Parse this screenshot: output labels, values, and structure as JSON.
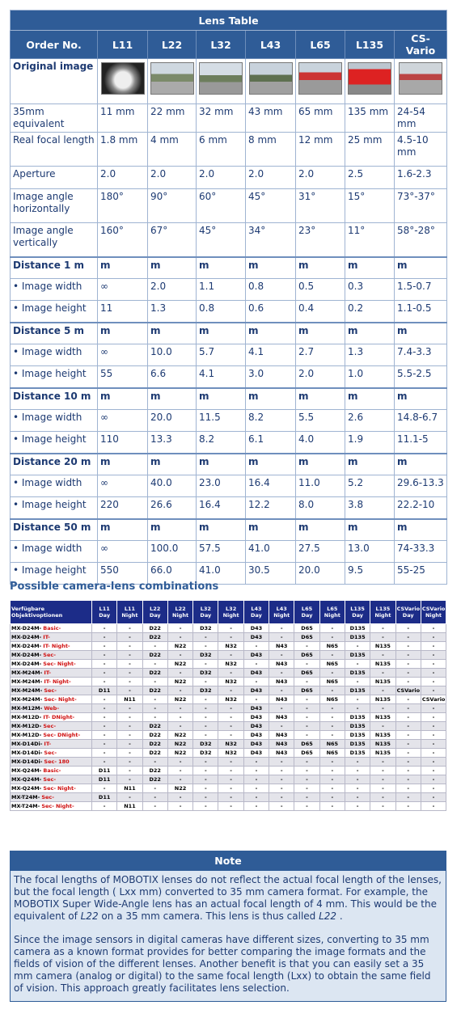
{
  "lens_table": {
    "title": "Lens Table",
    "header": [
      "Order No.",
      "L11",
      "L22",
      "L32",
      "L43",
      "L65",
      "L135",
      "CS-Vario"
    ],
    "image_row_label": "Original image",
    "specs": [
      [
        "35mm equivalent",
        "11 mm",
        "22 mm",
        "32 mm",
        "43 mm",
        "65 mm",
        "135 mm",
        "24-54 mm"
      ],
      [
        "Real focal length",
        "1.8 mm",
        "4 mm",
        "6 mm",
        "8 mm",
        "12 mm",
        "25 mm",
        "4.5-10 mm"
      ],
      [
        "Aperture",
        "2.0",
        "2.0",
        "2.0",
        "2.0",
        "2.0",
        "2.5",
        "1.6-2.3"
      ],
      [
        "Image angle horizontally",
        "180°",
        "90°",
        "60°",
        "45°",
        "31°",
        "15°",
        "73°-37°"
      ],
      [
        "Image angle vertically",
        "160°",
        "67°",
        "45°",
        "34°",
        "23°",
        "11°",
        "58°-28°"
      ]
    ],
    "distances": [
      {
        "label": "Distance 1 m",
        "units": [
          "m",
          "m",
          "m",
          "m",
          "m",
          "m",
          "m"
        ],
        "rows": [
          [
            "• Image width",
            "∞",
            "2.0",
            "1.1",
            "0.8",
            "0.5",
            "0.3",
            "1.5-0.7"
          ],
          [
            "• Image height",
            "11",
            "1.3",
            "0.8",
            "0.6",
            "0.4",
            "0.2",
            "1.1-0.5"
          ]
        ]
      },
      {
        "label": "Distance 5 m",
        "units": [
          "m",
          "m",
          "m",
          "m",
          "m",
          "m",
          "m"
        ],
        "rows": [
          [
            "• Image width",
            "∞",
            "10.0",
            "5.7",
            "4.1",
            "2.7",
            "1.3",
            "7.4-3.3"
          ],
          [
            "• Image height",
            "55",
            "6.6",
            "4.1",
            "3.0",
            "2.0",
            "1.0",
            "5.5-2.5"
          ]
        ]
      },
      {
        "label": "Distance 10 m",
        "units": [
          "m",
          "m",
          "m",
          "m",
          "m",
          "m",
          "m"
        ],
        "rows": [
          [
            "• Image width",
            "∞",
            "20.0",
            "11.5",
            "8.2",
            "5.5",
            "2.6",
            "14.8-6.7"
          ],
          [
            "• Image height",
            "110",
            "13.3",
            "8.2",
            "6.1",
            "4.0",
            "1.9",
            "11.1-5"
          ]
        ]
      },
      {
        "label": "Distance 20 m",
        "units": [
          "m",
          "m",
          "m",
          "m",
          "m",
          "m",
          "m"
        ],
        "rows": [
          [
            "• Image width",
            "∞",
            "40.0",
            "23.0",
            "16.4",
            "11.0",
            "5.2",
            "29.6-13.3"
          ],
          [
            "• Image height",
            "220",
            "26.6",
            "16.4",
            "12.2",
            "8.0",
            "3.8",
            "22.2-10"
          ]
        ]
      },
      {
        "label": "Distance 50 m",
        "units": [
          "m",
          "m",
          "m",
          "m",
          "m",
          "m",
          "m"
        ],
        "rows": [
          [
            "• Image width",
            "∞",
            "100.0",
            "57.5",
            "41.0",
            "27.5",
            "13.0",
            "74-33.3"
          ],
          [
            "• Image height",
            "550",
            "66.0",
            "41.0",
            "30.5",
            "20.0",
            "9.5",
            "55-25"
          ]
        ]
      }
    ]
  },
  "combinations": {
    "title": "Possible camera-lens combinations",
    "header_first": "Verfügbare Objektivoptionen",
    "columns": [
      "L11 Day",
      "L11 Night",
      "L22 Day",
      "L22 Night",
      "L32 Day",
      "L32 Night",
      "L43 Day",
      "L43 Night",
      "L65 Day",
      "L65 Night",
      "L135 Day",
      "L135 Night",
      "CSVario Day",
      "CSVario Night"
    ],
    "rows": [
      {
        "model": "MX-D24M-",
        "options": [
          "Basic-"
        ],
        "cells": [
          "-",
          "-",
          "D22",
          "-",
          "D32",
          "-",
          "D43",
          "-",
          "D65",
          "-",
          "D135",
          "-",
          "-",
          "-"
        ]
      },
      {
        "model": "MX-D24M-",
        "options": [
          "IT-"
        ],
        "cells": [
          "-",
          "-",
          "D22",
          "-",
          "-",
          "-",
          "D43",
          "-",
          "D65",
          "-",
          "D135",
          "-",
          "-",
          "-"
        ]
      },
      {
        "model": "MX-D24M-",
        "options": [
          "IT-",
          "Night-"
        ],
        "cells": [
          "-",
          "-",
          "-",
          "N22",
          "-",
          "N32",
          "-",
          "N43",
          "-",
          "N65",
          "-",
          "N135",
          "-",
          "-"
        ]
      },
      {
        "model": "MX-D24M-",
        "options": [
          "Sec-"
        ],
        "cells": [
          "-",
          "-",
          "D22",
          "-",
          "D32",
          "-",
          "D43",
          "-",
          "D65",
          "-",
          "D135",
          "-",
          "-",
          "-"
        ]
      },
      {
        "model": "MX-D24M-",
        "options": [
          "Sec-",
          "Night-"
        ],
        "cells": [
          "-",
          "-",
          "-",
          "N22",
          "-",
          "N32",
          "-",
          "N43",
          "-",
          "N65",
          "-",
          "N135",
          "-",
          "-"
        ]
      },
      {
        "model": "MX-M24M-",
        "options": [
          "IT-"
        ],
        "cells": [
          "-",
          "-",
          "D22",
          "-",
          "D32",
          "-",
          "D43",
          "-",
          "D65",
          "-",
          "D135",
          "-",
          "-",
          "-"
        ]
      },
      {
        "model": "MX-M24M-",
        "options": [
          "IT-",
          "Night-"
        ],
        "cells": [
          "-",
          "-",
          "-",
          "N22",
          "-",
          "N32",
          "-",
          "N43",
          "-",
          "N65",
          "-",
          "N135",
          "-",
          "-"
        ]
      },
      {
        "model": "MX-M24M-",
        "options": [
          "Sec-"
        ],
        "cells": [
          "D11",
          "-",
          "D22",
          "-",
          "D32",
          "-",
          "D43",
          "-",
          "D65",
          "-",
          "D135",
          "-",
          "CSVario",
          "-"
        ]
      },
      {
        "model": "MX-M24M-",
        "options": [
          "Sec-",
          "Night-"
        ],
        "cells": [
          "-",
          "N11",
          "-",
          "N22",
          "-",
          "N32",
          "-",
          "N43",
          "-",
          "N65",
          "-",
          "N135",
          "-",
          "CSVario"
        ]
      },
      {
        "model": "MX-M12M-",
        "options": [
          "Web-"
        ],
        "cells": [
          "-",
          "-",
          "-",
          "-",
          "-",
          "-",
          "D43",
          "-",
          "-",
          "-",
          "-",
          "-",
          "-",
          "-"
        ]
      },
      {
        "model": "MX-M12D-",
        "options": [
          "IT-",
          "DNight-"
        ],
        "cells": [
          "-",
          "-",
          "-",
          "-",
          "-",
          "-",
          "D43",
          "N43",
          "-",
          "-",
          "D135",
          "N135",
          "-",
          "-"
        ]
      },
      {
        "model": "MX-M12D-",
        "options": [
          "Sec-"
        ],
        "cells": [
          "-",
          "-",
          "D22",
          "-",
          "-",
          "-",
          "D43",
          "-",
          "-",
          "-",
          "D135",
          "-",
          "-",
          "-"
        ]
      },
      {
        "model": "MX-M12D-",
        "options": [
          "Sec-",
          "DNight-"
        ],
        "cells": [
          "-",
          "-",
          "D22",
          "N22",
          "-",
          "-",
          "D43",
          "N43",
          "-",
          "-",
          "D135",
          "N135",
          "-",
          "-"
        ]
      },
      {
        "model": "MX-D14Di-",
        "options": [
          "IT-"
        ],
        "cells": [
          "-",
          "-",
          "D22",
          "N22",
          "D32",
          "N32",
          "D43",
          "N43",
          "D65",
          "N65",
          "D135",
          "N135",
          "-",
          "-"
        ]
      },
      {
        "model": "MX-D14Di-",
        "options": [
          "Sec-"
        ],
        "cells": [
          "-",
          "-",
          "D22",
          "N22",
          "D32",
          "N32",
          "D43",
          "N43",
          "D65",
          "N65",
          "D135",
          "N135",
          "-",
          "-"
        ]
      },
      {
        "model": "MX-D14Di-",
        "options": [
          "Sec-",
          "180"
        ],
        "cells": [
          "-",
          "-",
          "-",
          "-",
          "-",
          "-",
          "-",
          "-",
          "-",
          "-",
          "-",
          "-",
          "-",
          "-"
        ]
      },
      {
        "model": "MX-Q24M-",
        "options": [
          "Basic-"
        ],
        "cells": [
          "D11",
          "-",
          "D22",
          "-",
          "-",
          "-",
          "-",
          "-",
          "-",
          "-",
          "-",
          "-",
          "-",
          "-"
        ]
      },
      {
        "model": "MX-Q24M-",
        "options": [
          "Sec-"
        ],
        "cells": [
          "D11",
          "-",
          "D22",
          "-",
          "-",
          "-",
          "-",
          "-",
          "-",
          "-",
          "-",
          "-",
          "-",
          "-"
        ]
      },
      {
        "model": "MX-Q24M-",
        "options": [
          "Sec-",
          "Night-"
        ],
        "cells": [
          "-",
          "N11",
          "-",
          "N22",
          "-",
          "-",
          "-",
          "-",
          "-",
          "-",
          "-",
          "-",
          "-",
          "-"
        ]
      },
      {
        "model": "MX-T24M-",
        "options": [
          "Sec-"
        ],
        "cells": [
          "D11",
          "-",
          "-",
          "-",
          "-",
          "-",
          "-",
          "-",
          "-",
          "-",
          "-",
          "-",
          "-",
          "-"
        ]
      },
      {
        "model": "MX-T24M-",
        "options": [
          "Sec-",
          "Night-"
        ],
        "cells": [
          "-",
          "N11",
          "-",
          "-",
          "-",
          "-",
          "-",
          "-",
          "-",
          "-",
          "-",
          "-",
          "-",
          "-"
        ]
      }
    ]
  },
  "note": {
    "title": "Note",
    "paragraphs": [
      [
        "The focal lengths of MOBOTIX lenses do not reflect the actual focal length of the lenses, but the focal length ( Lxx mm) converted to 35 mm camera format. For example, the MOBOTIX Super Wide-Angle lens has an actual focal length of 4 mm. This would be the equivalent of ",
        "L22",
        " on a 35 mm camera. This lens is thus called ",
        "L22",
        " ."
      ],
      [
        "Since the image sensors in digital cameras have different sizes, converting to 35 mm camera as a known format provides for better comparing the image formats and the fields of vision of the different lenses. Another benefit is that you can easily set a 35 mm camera (analog or digital) to the same focal length (Lxx) to obtain the same field of vision. This approach greatly facilitates lens selection."
      ]
    ]
  }
}
